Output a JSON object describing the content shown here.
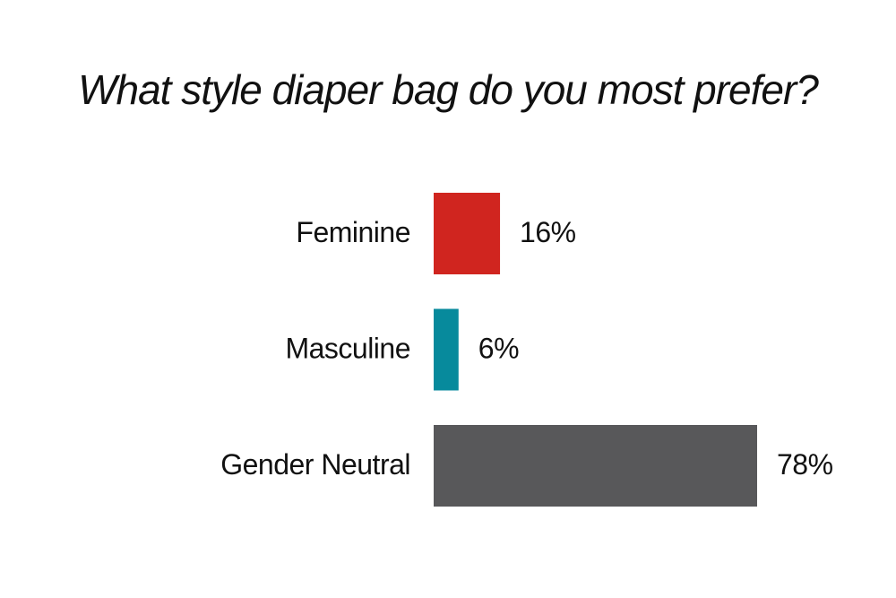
{
  "chart_data": {
    "type": "bar",
    "orientation": "horizontal",
    "title": "What style diaper bag do you most prefer?",
    "categories": [
      "Feminine",
      "Masculine",
      "Gender Neutral"
    ],
    "values": [
      16,
      6,
      78
    ],
    "value_labels": [
      "16%",
      "6%",
      "78%"
    ],
    "colors": [
      "#d0251f",
      "#078a9c",
      "#58585a"
    ],
    "grid": false
  }
}
